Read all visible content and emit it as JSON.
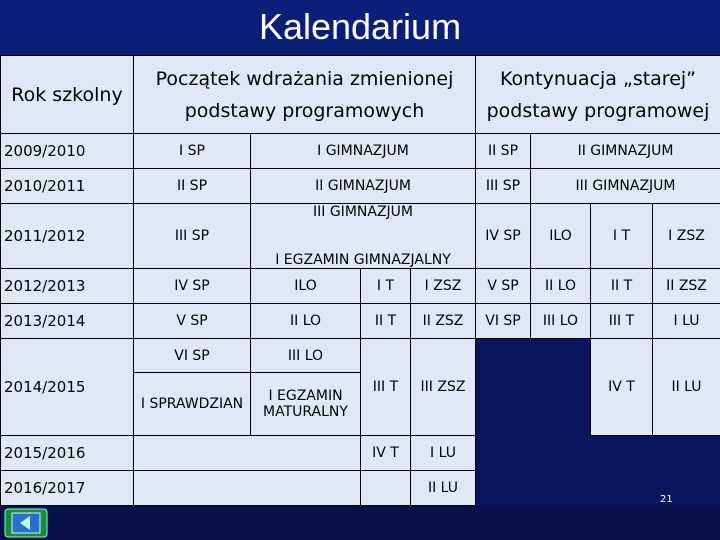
{
  "title": "Kalendarium",
  "header": {
    "year": "Rok szkolny",
    "new": [
      "Początek wdrażania zmienionej",
      "podstawy programowych"
    ],
    "old": [
      "Kontynuacja „starej”",
      "podstawy programowej"
    ]
  },
  "rows": [
    {
      "year": "2009/2010",
      "cells": [
        [
          "I SP"
        ],
        [
          "I GIMNAZJUM"
        ],
        [
          "II SP"
        ],
        [
          "II GIMNAZJUM"
        ]
      ]
    },
    {
      "year": "2010/2011",
      "cells": [
        [
          "II SP"
        ],
        [
          "II GIMNAZJUM"
        ],
        [
          "III SP"
        ],
        [
          "III GIMNAZJUM"
        ]
      ]
    },
    {
      "year": "2011/2012",
      "cells": [
        [
          "III SP"
        ],
        [
          "III GIMNAZJUM",
          "I EGZAMIN GIMNAZJALNY"
        ],
        [
          "IV SP"
        ],
        [
          "ILO"
        ],
        [
          "I T"
        ],
        [
          "I ZSZ"
        ]
      ]
    },
    {
      "year": "2012/2013",
      "cells": [
        [
          "IV SP"
        ],
        [
          "ILO"
        ],
        [
          "I T"
        ],
        [
          "I ZSZ"
        ],
        [
          "V SP"
        ],
        [
          "II LO"
        ],
        [
          "II T"
        ],
        [
          "II ZSZ"
        ]
      ]
    },
    {
      "year": "2013/2014",
      "cells": [
        [
          "V SP"
        ],
        [
          "II LO"
        ],
        [
          "II T"
        ],
        [
          "II ZSZ"
        ],
        [
          "VI SP"
        ],
        [
          "III LO"
        ],
        [
          "III T"
        ],
        [
          "I LU"
        ]
      ]
    },
    {
      "year": "2014/2015",
      "cells": [
        [
          "VI SP"
        ],
        [
          "III LO"
        ],
        [
          "I SPRAWDZIAN"
        ],
        [
          "I EGZAMIN",
          "MATURALNY"
        ],
        [
          "III T"
        ],
        [
          "III ZSZ"
        ],
        [
          "IV T"
        ],
        [
          "II LU"
        ]
      ]
    },
    {
      "year": "2015/2016",
      "cells": [
        [
          "IV T"
        ],
        [
          "I LU"
        ]
      ]
    },
    {
      "year": "2016/2017",
      "cells": [
        [
          "II LU"
        ]
      ]
    }
  ],
  "page_number": "21"
}
